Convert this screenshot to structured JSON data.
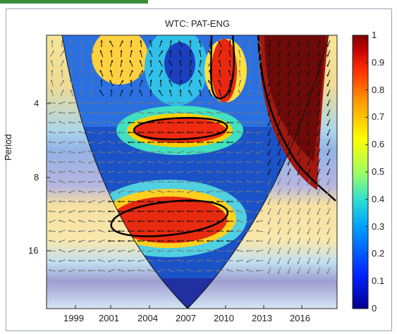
{
  "chart_data": {
    "type": "heatmap",
    "title": "WTC: PAT-ENG",
    "xlabel": "",
    "ylabel": "Period",
    "x_ticks": [
      "1999",
      "2001",
      "2004",
      "2007",
      "2010",
      "2013",
      "2016"
    ],
    "y_ticks": [
      "4",
      "8",
      "16"
    ],
    "colorbar": {
      "min": 0,
      "max": 1,
      "ticks": [
        "0",
        "0.1",
        "0.2",
        "0.3",
        "0.4",
        "0.5",
        "0.6",
        "0.7",
        "0.8",
        "0.9",
        "1"
      ]
    },
    "colormap": [
      "#00008f",
      "#0020ff",
      "#00a0ff",
      "#30e0d0",
      "#a0ff60",
      "#ffff00",
      "#ffa000",
      "#ff3000",
      "#c00000",
      "#800000"
    ],
    "cone_of_influence": true
  }
}
